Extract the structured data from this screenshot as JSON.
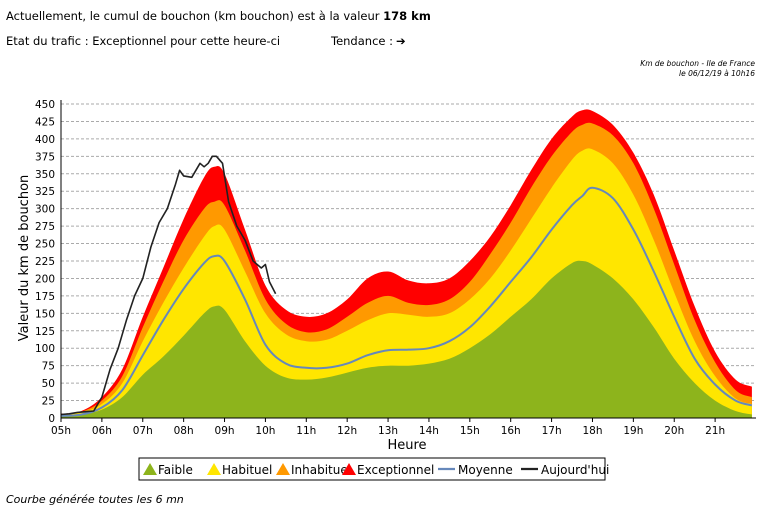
{
  "header": {
    "line1_prefix": "Actuellement, le cumul de bouchon (km bouchon) est à la valeur",
    "line1_value": "178 km",
    "traffic_label": "Etat du trafic : Exceptionnel pour cette heure-ci",
    "trend_label": "Tendance :",
    "trend_icon": "arrow-right-icon"
  },
  "meta": {
    "line1": "Km de bouchon - Ile de France",
    "line2": "le 06/12/19 à 10h16"
  },
  "footer": "Courbe générée toutes les 6 mn",
  "colors": {
    "faible": "#8db41c",
    "habituel": "#ffe600",
    "inhabituel": "#ff9900",
    "exceptionnel": "#ff0000",
    "moyenne": "#6688bb",
    "aujourdhui": "#222222"
  },
  "chart_data": {
    "type": "area",
    "xlabel": "Heure",
    "ylabel": "Valeur du  km de bouchon",
    "xlim": [
      5,
      22
    ],
    "ylim": [
      0,
      450
    ],
    "y_ticks": [
      0,
      25,
      50,
      75,
      100,
      125,
      150,
      175,
      200,
      225,
      250,
      275,
      300,
      325,
      350,
      375,
      400,
      425,
      450
    ],
    "x_ticks": [
      "05h",
      "06h",
      "07h",
      "08h",
      "09h",
      "10h",
      "11h",
      "12h",
      "13h",
      "14h",
      "15h",
      "16h",
      "17h",
      "18h",
      "19h",
      "20h",
      "21h"
    ],
    "grid": true,
    "legend_position": "bottom",
    "legend": [
      "Faible",
      "Habituel",
      "Inhabituel",
      "Exceptionnel",
      "Moyenne",
      "Aujourd'hui"
    ],
    "x": [
      5.0,
      5.5,
      6.0,
      6.5,
      7.0,
      7.5,
      8.0,
      8.5,
      8.75,
      9.0,
      9.5,
      10.0,
      10.5,
      11.0,
      11.5,
      12.0,
      12.5,
      13.0,
      13.5,
      14.0,
      14.5,
      15.0,
      15.5,
      16.0,
      16.5,
      17.0,
      17.5,
      17.75,
      18.0,
      18.5,
      19.0,
      19.5,
      20.0,
      20.5,
      21.0,
      21.5,
      21.9
    ],
    "series": [
      {
        "name": "Faible",
        "values": [
          3,
          5,
          12,
          30,
          62,
          88,
          118,
          150,
          160,
          155,
          110,
          75,
          58,
          55,
          58,
          65,
          72,
          75,
          75,
          78,
          85,
          100,
          120,
          145,
          170,
          200,
          222,
          225,
          220,
          200,
          170,
          130,
          85,
          50,
          25,
          10,
          5
        ]
      },
      {
        "name": "Habituel",
        "values": [
          4,
          8,
          20,
          50,
          110,
          165,
          215,
          260,
          275,
          270,
          210,
          150,
          120,
          110,
          112,
          125,
          140,
          150,
          148,
          145,
          150,
          170,
          200,
          240,
          285,
          330,
          370,
          383,
          385,
          365,
          320,
          255,
          180,
          110,
          60,
          28,
          20
        ]
      },
      {
        "name": "Inhabituel",
        "values": [
          5,
          9,
          25,
          60,
          130,
          195,
          255,
          300,
          310,
          305,
          240,
          170,
          135,
          123,
          127,
          145,
          165,
          175,
          165,
          162,
          170,
          195,
          235,
          280,
          330,
          375,
          410,
          420,
          422,
          405,
          365,
          300,
          220,
          140,
          80,
          40,
          30
        ]
      },
      {
        "name": "Exceptionnel",
        "values": [
          6,
          10,
          30,
          70,
          145,
          215,
          285,
          345,
          360,
          350,
          270,
          190,
          155,
          145,
          150,
          170,
          200,
          210,
          197,
          193,
          200,
          225,
          260,
          305,
          355,
          400,
          432,
          441,
          440,
          420,
          380,
          320,
          240,
          160,
          95,
          55,
          45
        ]
      },
      {
        "name": "Moyenne",
        "values": [
          3,
          5,
          15,
          40,
          90,
          140,
          185,
          222,
          232,
          225,
          170,
          105,
          78,
          72,
          72,
          78,
          90,
          97,
          98,
          100,
          110,
          130,
          160,
          195,
          230,
          270,
          305,
          318,
          330,
          315,
          270,
          210,
          145,
          85,
          48,
          25,
          18
        ]
      },
      {
        "name": "Aujourd'hui",
        "x": [
          5.0,
          5.2,
          5.4,
          5.6,
          5.8,
          6.0,
          6.2,
          6.4,
          6.6,
          6.8,
          7.0,
          7.2,
          7.4,
          7.6,
          7.8,
          7.9,
          8.0,
          8.2,
          8.4,
          8.5,
          8.6,
          8.7,
          8.8,
          8.95,
          9.1,
          9.3,
          9.5,
          9.7,
          9.9,
          10.0,
          10.1,
          10.25
        ],
        "values": [
          5,
          6,
          8,
          9,
          10,
          30,
          70,
          100,
          140,
          175,
          200,
          245,
          280,
          300,
          335,
          355,
          347,
          345,
          365,
          360,
          365,
          375,
          375,
          365,
          310,
          275,
          255,
          225,
          215,
          220,
          195,
          178
        ]
      }
    ]
  }
}
